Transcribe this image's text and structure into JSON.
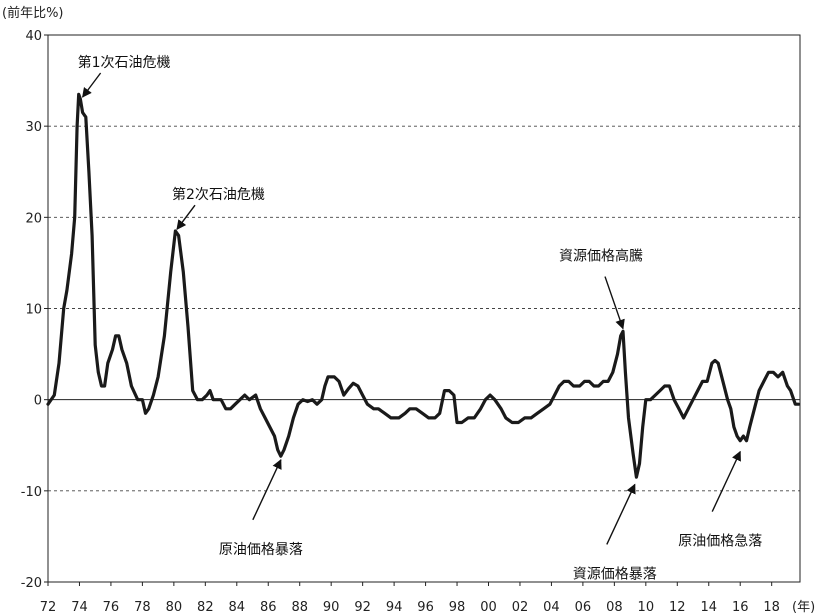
{
  "chart_data": {
    "type": "line",
    "ylabel": "(前年比%)",
    "xunit": "(年)",
    "ylim": [
      -20,
      40
    ],
    "xlim": [
      1972,
      2019.8
    ],
    "yticks": [
      40,
      30,
      20,
      10,
      0,
      -10,
      -20
    ],
    "xticks": [
      {
        "year": 1972,
        "label": "72"
      },
      {
        "year": 1974,
        "label": "74"
      },
      {
        "year": 1976,
        "label": "76"
      },
      {
        "year": 1978,
        "label": "78"
      },
      {
        "year": 1980,
        "label": "80"
      },
      {
        "year": 1982,
        "label": "82"
      },
      {
        "year": 1984,
        "label": "84"
      },
      {
        "year": 1986,
        "label": "86"
      },
      {
        "year": 1988,
        "label": "88"
      },
      {
        "year": 1990,
        "label": "90"
      },
      {
        "year": 1992,
        "label": "92"
      },
      {
        "year": 1994,
        "label": "94"
      },
      {
        "year": 1996,
        "label": "96"
      },
      {
        "year": 1998,
        "label": "98"
      },
      {
        "year": 2000,
        "label": "00"
      },
      {
        "year": 2002,
        "label": "02"
      },
      {
        "year": 2004,
        "label": "04"
      },
      {
        "year": 2006,
        "label": "06"
      },
      {
        "year": 2008,
        "label": "08"
      },
      {
        "year": 2010,
        "label": "10"
      },
      {
        "year": 2012,
        "label": "12"
      },
      {
        "year": 2014,
        "label": "14"
      },
      {
        "year": 2016,
        "label": "16"
      },
      {
        "year": 2018,
        "label": "18"
      }
    ],
    "grid": {
      "horizontal": true,
      "style": "dashed"
    },
    "series": [
      {
        "points": [
          [
            1972.0,
            -0.5
          ],
          [
            1972.4,
            0.5
          ],
          [
            1972.7,
            4
          ],
          [
            1973.0,
            10
          ],
          [
            1973.2,
            12
          ],
          [
            1973.5,
            16
          ],
          [
            1973.7,
            20
          ],
          [
            1973.85,
            30
          ],
          [
            1973.95,
            33.5
          ],
          [
            1974.05,
            33
          ],
          [
            1974.2,
            31.5
          ],
          [
            1974.4,
            31
          ],
          [
            1974.6,
            25
          ],
          [
            1974.8,
            18
          ],
          [
            1975.0,
            6
          ],
          [
            1975.2,
            3
          ],
          [
            1975.4,
            1.5
          ],
          [
            1975.6,
            1.5
          ],
          [
            1975.8,
            4
          ],
          [
            1976.1,
            5.5
          ],
          [
            1976.3,
            7
          ],
          [
            1976.5,
            7
          ],
          [
            1976.7,
            5.5
          ],
          [
            1977.0,
            4
          ],
          [
            1977.3,
            1.5
          ],
          [
            1977.7,
            0
          ],
          [
            1978.0,
            0
          ],
          [
            1978.2,
            -1.5
          ],
          [
            1978.4,
            -1
          ],
          [
            1978.7,
            0.5
          ],
          [
            1979.0,
            2.5
          ],
          [
            1979.4,
            7
          ],
          [
            1979.8,
            14
          ],
          [
            1980.1,
            18.5
          ],
          [
            1980.3,
            18
          ],
          [
            1980.6,
            14
          ],
          [
            1980.9,
            8
          ],
          [
            1981.2,
            1
          ],
          [
            1981.5,
            0
          ],
          [
            1981.8,
            0
          ],
          [
            1982.1,
            0.5
          ],
          [
            1982.3,
            1
          ],
          [
            1982.5,
            0
          ],
          [
            1982.8,
            0
          ],
          [
            1983.0,
            0
          ],
          [
            1983.3,
            -1
          ],
          [
            1983.6,
            -1
          ],
          [
            1983.9,
            -0.5
          ],
          [
            1984.2,
            0
          ],
          [
            1984.5,
            0.5
          ],
          [
            1984.8,
            0
          ],
          [
            1985.2,
            0.5
          ],
          [
            1985.5,
            -1
          ],
          [
            1985.8,
            -2
          ],
          [
            1986.1,
            -3
          ],
          [
            1986.4,
            -4
          ],
          [
            1986.6,
            -5.5
          ],
          [
            1986.8,
            -6.2
          ],
          [
            1987.0,
            -5.5
          ],
          [
            1987.3,
            -4
          ],
          [
            1987.6,
            -2
          ],
          [
            1987.9,
            -0.5
          ],
          [
            1988.2,
            0
          ],
          [
            1988.5,
            -0.2
          ],
          [
            1988.8,
            0
          ],
          [
            1989.1,
            -0.5
          ],
          [
            1989.4,
            0
          ],
          [
            1989.6,
            1.5
          ],
          [
            1989.8,
            2.5
          ],
          [
            1990.2,
            2.5
          ],
          [
            1990.5,
            2
          ],
          [
            1990.8,
            0.5
          ],
          [
            1991.1,
            1.2
          ],
          [
            1991.4,
            1.8
          ],
          [
            1991.7,
            1.5
          ],
          [
            1992.0,
            0.5
          ],
          [
            1992.3,
            -0.5
          ],
          [
            1992.7,
            -1
          ],
          [
            1993.0,
            -1
          ],
          [
            1993.4,
            -1.5
          ],
          [
            1993.8,
            -2
          ],
          [
            1994.3,
            -2
          ],
          [
            1994.7,
            -1.5
          ],
          [
            1995.0,
            -1
          ],
          [
            1995.4,
            -1
          ],
          [
            1995.8,
            -1.5
          ],
          [
            1996.2,
            -2
          ],
          [
            1996.6,
            -2
          ],
          [
            1996.9,
            -1.5
          ],
          [
            1997.2,
            1
          ],
          [
            1997.5,
            1
          ],
          [
            1997.8,
            0.5
          ],
          [
            1998.0,
            -2.5
          ],
          [
            1998.3,
            -2.5
          ],
          [
            1998.7,
            -2
          ],
          [
            1999.1,
            -2
          ],
          [
            1999.5,
            -1
          ],
          [
            1999.8,
            0
          ],
          [
            2000.1,
            0.5
          ],
          [
            2000.4,
            0
          ],
          [
            2000.8,
            -1
          ],
          [
            2001.1,
            -2
          ],
          [
            2001.5,
            -2.5
          ],
          [
            2001.9,
            -2.5
          ],
          [
            2002.3,
            -2
          ],
          [
            2002.7,
            -2
          ],
          [
            2003.1,
            -1.5
          ],
          [
            2003.5,
            -1
          ],
          [
            2003.9,
            -0.5
          ],
          [
            2004.2,
            0.5
          ],
          [
            2004.5,
            1.5
          ],
          [
            2004.8,
            2
          ],
          [
            2005.1,
            2
          ],
          [
            2005.4,
            1.5
          ],
          [
            2005.8,
            1.5
          ],
          [
            2006.1,
            2
          ],
          [
            2006.4,
            2
          ],
          [
            2006.7,
            1.5
          ],
          [
            2007.0,
            1.5
          ],
          [
            2007.3,
            2
          ],
          [
            2007.6,
            2
          ],
          [
            2007.9,
            3
          ],
          [
            2008.2,
            5
          ],
          [
            2008.4,
            7
          ],
          [
            2008.55,
            7.5
          ],
          [
            2008.7,
            3
          ],
          [
            2008.9,
            -2
          ],
          [
            2009.2,
            -6
          ],
          [
            2009.4,
            -8.5
          ],
          [
            2009.6,
            -7
          ],
          [
            2009.8,
            -3
          ],
          [
            2010.0,
            0
          ],
          [
            2010.3,
            0
          ],
          [
            2010.6,
            0.5
          ],
          [
            2010.9,
            1
          ],
          [
            2011.2,
            1.5
          ],
          [
            2011.5,
            1.5
          ],
          [
            2011.8,
            0
          ],
          [
            2012.1,
            -1
          ],
          [
            2012.4,
            -2
          ],
          [
            2012.7,
            -1
          ],
          [
            2013.0,
            0
          ],
          [
            2013.3,
            1
          ],
          [
            2013.6,
            2
          ],
          [
            2013.9,
            2
          ],
          [
            2014.2,
            4
          ],
          [
            2014.4,
            4.3
          ],
          [
            2014.6,
            4
          ],
          [
            2014.9,
            2
          ],
          [
            2015.2,
            0
          ],
          [
            2015.4,
            -1
          ],
          [
            2015.6,
            -3
          ],
          [
            2015.8,
            -4
          ],
          [
            2016.0,
            -4.5
          ],
          [
            2016.2,
            -4
          ],
          [
            2016.4,
            -4.5
          ],
          [
            2016.6,
            -3
          ],
          [
            2016.9,
            -1
          ],
          [
            2017.2,
            1
          ],
          [
            2017.5,
            2
          ],
          [
            2017.8,
            3
          ],
          [
            2018.1,
            3
          ],
          [
            2018.4,
            2.5
          ],
          [
            2018.7,
            3
          ],
          [
            2019.0,
            1.5
          ],
          [
            2019.2,
            1
          ],
          [
            2019.5,
            -0.5
          ],
          [
            2019.7,
            -0.5
          ]
        ]
      }
    ],
    "annotations": [
      {
        "text": "第1次石油危機",
        "target": [
          1974.2,
          33.2
        ],
        "anchor": "label-above-right"
      },
      {
        "text": "第2次石油危機",
        "target": [
          1980.2,
          18.7
        ],
        "anchor": "label-above-right"
      },
      {
        "text": "原油価格暴落",
        "target": [
          1986.8,
          -6.6
        ],
        "anchor": "label-below-left"
      },
      {
        "text": "資源価格高騰",
        "target": [
          2008.55,
          7.8
        ],
        "anchor": "label-above-left"
      },
      {
        "text": "資源価格暴落",
        "target": [
          2009.3,
          -9.3
        ],
        "anchor": "label-below-left"
      },
      {
        "text": "原油価格急落",
        "target": [
          2016.0,
          -5.7
        ],
        "anchor": "label-below-left"
      }
    ]
  }
}
